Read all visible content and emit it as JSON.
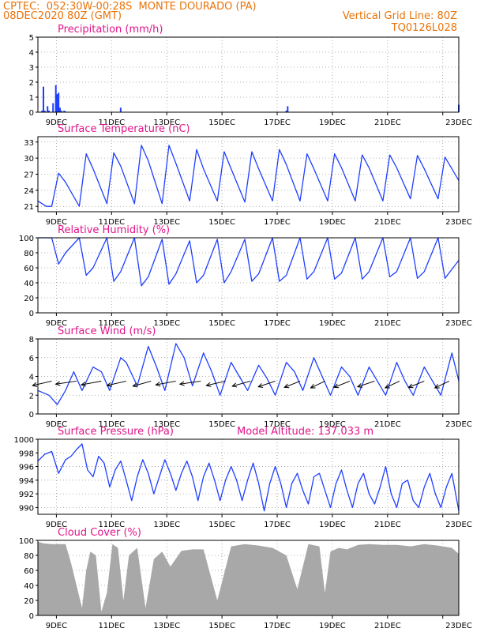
{
  "header": {
    "line1_left": "CPTEC:  052:30W-00:28S  MONTE DOURADO (PA)",
    "line2_left": "08DEC2020 80Z (GMT)",
    "line2_right": "Vertical Grid Line: 80Z",
    "line3_right": "TQ0126L028"
  },
  "colors": {
    "header": "#e8730a",
    "title": "#e0158a",
    "series": "#1f3fff",
    "cloud": "#a8a8a8",
    "grid": "#9a9a9a"
  },
  "chart_data": [
    {
      "id": "precip",
      "type": "bar",
      "title": "Precipitation (mm/h)",
      "ylim": [
        0,
        5
      ],
      "yticks": [
        0,
        1,
        2,
        3,
        4,
        5
      ],
      "xticks": [
        "9DEC",
        "11DEC",
        "13DEC",
        "15DEC",
        "17DEC",
        "19DEC",
        "21DEC",
        "23DEC"
      ],
      "x_unit": "days since 08DEC2020 08Z",
      "x": [
        0.15,
        0.2,
        0.25,
        0.35,
        0.4,
        0.55,
        0.65,
        0.7,
        0.75,
        0.8,
        0.85,
        0.95,
        1.0,
        3.0,
        9.0,
        9.05,
        15.25
      ],
      "values": [
        0.1,
        1.7,
        0.1,
        0.4,
        0.1,
        0.6,
        1.8,
        1.2,
        1.3,
        0.3,
        0.1,
        0.1,
        0.05,
        0.3,
        0.1,
        0.4,
        0.5
      ]
    },
    {
      "id": "temp",
      "type": "line",
      "title": "Surface Temperature (nC)",
      "ylim": [
        20,
        34
      ],
      "yticks": [
        21,
        24,
        27,
        30,
        33
      ],
      "xticks": [
        "9DEC",
        "11DEC",
        "13DEC",
        "15DEC",
        "17DEC",
        "19DEC",
        "21DEC",
        "23DEC"
      ],
      "x": [
        0.0,
        0.3,
        0.5,
        0.75,
        1.0,
        1.5,
        1.75,
        2.0,
        2.5,
        2.75,
        3.0,
        3.5,
        3.75,
        4.0,
        4.5,
        4.75,
        5.0,
        5.5,
        5.75,
        6.0,
        6.5,
        6.75,
        7.0,
        7.5,
        7.75,
        8.0,
        8.5,
        8.75,
        9.0,
        9.5,
        9.75,
        10.0,
        10.5,
        10.75,
        11.0,
        11.5,
        11.75,
        12.0,
        12.5,
        12.75,
        13.0,
        13.5,
        13.75,
        14.0,
        14.5,
        14.75,
        15.0,
        15.25
      ],
      "series": [
        {
          "values": [
            22.0,
            21.0,
            21.0,
            27.2,
            25.5,
            21.0,
            30.8,
            28.0,
            21.5,
            31.0,
            28.5,
            21.5,
            32.4,
            29.5,
            21.5,
            32.4,
            29.0,
            22.0,
            31.6,
            28.0,
            22.0,
            31.2,
            28.0,
            21.8,
            31.2,
            28.0,
            22.0,
            31.6,
            28.8,
            22.0,
            30.8,
            28.0,
            22.0,
            30.8,
            28.2,
            22.0,
            30.6,
            28.2,
            22.0,
            30.6,
            28.2,
            22.4,
            30.5,
            28.0,
            22.4,
            30.2,
            28.0,
            25.8
          ]
        }
      ]
    },
    {
      "id": "rh",
      "type": "line",
      "title": "Relative Humidity (%)",
      "ylim": [
        0,
        100
      ],
      "yticks": [
        0,
        20,
        40,
        60,
        80,
        100
      ],
      "xticks": [
        "9DEC",
        "11DEC",
        "13DEC",
        "15DEC",
        "17DEC",
        "19DEC",
        "21DEC",
        "23DEC"
      ],
      "x": [
        0.0,
        0.3,
        0.5,
        0.75,
        1.0,
        1.5,
        1.75,
        2.0,
        2.5,
        2.75,
        3.0,
        3.5,
        3.75,
        4.0,
        4.5,
        4.75,
        5.0,
        5.5,
        5.75,
        6.0,
        6.5,
        6.75,
        7.0,
        7.5,
        7.75,
        8.0,
        8.5,
        8.75,
        9.0,
        9.5,
        9.75,
        10.0,
        10.5,
        10.75,
        11.0,
        11.5,
        11.75,
        12.0,
        12.5,
        12.75,
        13.0,
        13.5,
        13.75,
        14.0,
        14.5,
        14.75,
        15.0,
        15.25
      ],
      "series": [
        {
          "values": [
            100,
            100,
            100,
            65,
            80,
            100,
            50,
            60,
            100,
            42,
            55,
            100,
            36,
            48,
            98,
            38,
            52,
            96,
            40,
            50,
            98,
            40,
            55,
            98,
            42,
            52,
            100,
            42,
            50,
            100,
            45,
            55,
            100,
            45,
            53,
            100,
            45,
            55,
            100,
            48,
            55,
            100,
            46,
            55,
            100,
            46,
            58,
            70
          ]
        }
      ]
    },
    {
      "id": "wind",
      "type": "line",
      "title": "Surface Wind (m/s)",
      "ylim": [
        0,
        8
      ],
      "yticks": [
        0,
        2,
        4,
        6,
        8
      ],
      "xticks": [
        "9DEC",
        "11DEC",
        "13DEC",
        "15DEC",
        "17DEC",
        "19DEC",
        "21DEC",
        "23DEC"
      ],
      "x": [
        0.0,
        0.4,
        0.7,
        1.0,
        1.3,
        1.6,
        2.0,
        2.3,
        2.6,
        3.0,
        3.2,
        3.6,
        4.0,
        4.3,
        4.6,
        5.0,
        5.3,
        5.6,
        6.0,
        6.3,
        6.6,
        7.0,
        7.3,
        7.6,
        8.0,
        8.3,
        8.6,
        9.0,
        9.3,
        9.6,
        10.0,
        10.3,
        10.6,
        11.0,
        11.3,
        11.6,
        12.0,
        12.3,
        12.6,
        13.0,
        13.3,
        13.6,
        14.0,
        14.3,
        14.6,
        15.0,
        15.25
      ],
      "series": [
        {
          "values": [
            2.5,
            2.0,
            1.0,
            2.5,
            4.5,
            2.5,
            5.0,
            4.5,
            2.5,
            6.0,
            5.5,
            3.0,
            7.2,
            5.0,
            2.5,
            7.5,
            6.0,
            3.0,
            6.5,
            4.5,
            2.0,
            5.5,
            4.0,
            2.5,
            5.2,
            3.8,
            2.0,
            5.5,
            4.5,
            2.5,
            6.0,
            4.0,
            2.0,
            5.0,
            4.0,
            2.0,
            5.0,
            3.5,
            2.0,
            5.5,
            3.5,
            2.0,
            5.0,
            3.5,
            2.0,
            6.5,
            3.5
          ]
        }
      ],
      "vectors": {
        "x": [
          0.5,
          1.4,
          2.3,
          3.2,
          4.1,
          5.0,
          5.9,
          6.8,
          7.7,
          8.6,
          9.5,
          10.4,
          11.3,
          12.2,
          13.1,
          14.0,
          14.9
        ],
        "dir_deg": [
          210,
          200,
          205,
          210,
          215,
          205,
          200,
          210,
          215,
          220,
          225,
          230,
          225,
          220,
          230,
          225,
          230
        ]
      }
    },
    {
      "id": "pressure",
      "type": "line",
      "title": "Surface Pressure (hPa)",
      "annotation": "Model Altitude: 137.033 m",
      "ylim": [
        989,
        1000
      ],
      "yticks": [
        990,
        992,
        994,
        996,
        998,
        1000
      ],
      "xticks": [
        "9DEC",
        "11DEC",
        "13DEC",
        "15DEC",
        "17DEC",
        "19DEC",
        "21DEC",
        "23DEC"
      ],
      "x": [
        0.0,
        0.25,
        0.5,
        0.75,
        1.0,
        1.2,
        1.4,
        1.6,
        1.8,
        2.0,
        2.2,
        2.4,
        2.6,
        2.8,
        3.0,
        3.2,
        3.4,
        3.6,
        3.8,
        4.0,
        4.2,
        4.4,
        4.6,
        4.8,
        5.0,
        5.2,
        5.4,
        5.6,
        5.8,
        6.0,
        6.2,
        6.4,
        6.6,
        6.8,
        7.0,
        7.2,
        7.4,
        7.6,
        7.8,
        8.0,
        8.2,
        8.4,
        8.6,
        8.8,
        9.0,
        9.2,
        9.4,
        9.6,
        9.8,
        10.0,
        10.2,
        10.4,
        10.6,
        10.8,
        11.0,
        11.2,
        11.4,
        11.6,
        11.8,
        12.0,
        12.2,
        12.4,
        12.6,
        12.8,
        13.0,
        13.2,
        13.4,
        13.6,
        13.8,
        14.0,
        14.2,
        14.4,
        14.6,
        14.8,
        15.0,
        15.25
      ],
      "series": [
        {
          "values": [
            996.8,
            997.8,
            998.2,
            995.0,
            997.0,
            997.5,
            998.5,
            999.3,
            995.5,
            994.5,
            997.5,
            996.5,
            993.0,
            995.5,
            996.8,
            994.0,
            991.0,
            994.5,
            997.0,
            995.0,
            992.0,
            994.5,
            997.0,
            995.0,
            992.5,
            995.0,
            996.8,
            994.5,
            991.0,
            994.5,
            996.5,
            994.0,
            991.0,
            994.0,
            996.0,
            994.0,
            991.0,
            994.0,
            996.5,
            993.5,
            989.5,
            993.5,
            996.0,
            993.5,
            990.0,
            993.5,
            995.0,
            992.5,
            990.5,
            994.5,
            995.0,
            992.5,
            990.0,
            993.5,
            995.5,
            992.5,
            990.0,
            993.5,
            995.0,
            992.0,
            990.5,
            993.0,
            996.0,
            992.0,
            990.0,
            993.5,
            994.0,
            991.0,
            990.0,
            993.0,
            995.0,
            992.0,
            990.0,
            993.0,
            995.0,
            989.5
          ]
        }
      ]
    },
    {
      "id": "cloud",
      "type": "area",
      "title": "Cloud Cover (%)",
      "ylim": [
        0,
        100
      ],
      "yticks": [
        0,
        20,
        40,
        60,
        80,
        100
      ],
      "xticks": [
        "9DEC",
        "11DEC",
        "13DEC",
        "15DEC",
        "17DEC",
        "19DEC",
        "21DEC",
        "23DEC"
      ],
      "x": [
        0.0,
        0.2,
        0.5,
        1.0,
        1.2,
        1.4,
        1.6,
        1.75,
        1.9,
        2.1,
        2.3,
        2.5,
        2.7,
        2.9,
        3.1,
        3.3,
        3.6,
        3.9,
        4.2,
        4.5,
        4.8,
        5.2,
        5.6,
        6.0,
        6.5,
        7.0,
        7.5,
        8.0,
        8.5,
        9.0,
        9.4,
        9.8,
        10.2,
        10.4,
        10.6,
        10.9,
        11.2,
        11.6,
        12.0,
        12.5,
        13.0,
        13.5,
        14.0,
        14.5,
        15.0,
        15.25
      ],
      "series": [
        {
          "values": [
            98,
            96,
            95,
            95,
            70,
            40,
            10,
            60,
            85,
            80,
            5,
            30,
            95,
            90,
            20,
            80,
            90,
            10,
            75,
            85,
            65,
            86,
            88,
            88,
            20,
            92,
            95,
            93,
            90,
            80,
            35,
            95,
            92,
            30,
            85,
            90,
            88,
            94,
            95,
            94,
            94,
            92,
            95,
            93,
            90,
            82
          ]
        }
      ]
    }
  ]
}
